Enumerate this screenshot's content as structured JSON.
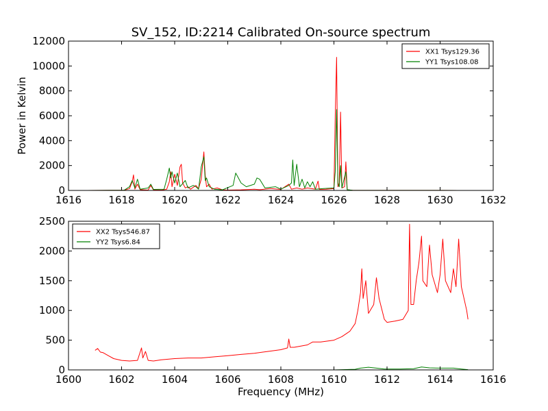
{
  "figure": {
    "title": "SV_152, ID:2214 Calibrated On-source spectrum",
    "xlabel": "Frequency (MHz)",
    "ylabel": "Power in Kelvin"
  },
  "colors": {
    "xx": "#ff0000",
    "yy": "#008000",
    "axes": "#000000"
  },
  "chart_data": [
    {
      "type": "line",
      "xlim": [
        1616,
        1632
      ],
      "ylim": [
        0,
        12000
      ],
      "xticks": [
        1616,
        1618,
        1620,
        1622,
        1624,
        1626,
        1628,
        1630,
        1632
      ],
      "yticks": [
        0,
        2000,
        4000,
        6000,
        8000,
        10000,
        12000
      ],
      "legend_position": "upper-right",
      "series": [
        {
          "name": "XX1 Tsys129.36",
          "color": "#ff0000",
          "points": [
            [
              1616.7,
              0
            ],
            [
              1618.1,
              20
            ],
            [
              1618.3,
              150
            ],
            [
              1618.4,
              700
            ],
            [
              1618.45,
              1250
            ],
            [
              1618.5,
              100
            ],
            [
              1618.6,
              500
            ],
            [
              1618.7,
              60
            ],
            [
              1619.0,
              30
            ],
            [
              1619.1,
              400
            ],
            [
              1619.2,
              40
            ],
            [
              1619.5,
              30
            ],
            [
              1619.7,
              100
            ],
            [
              1619.8,
              700
            ],
            [
              1619.85,
              1500
            ],
            [
              1619.9,
              300
            ],
            [
              1620.0,
              1300
            ],
            [
              1620.1,
              400
            ],
            [
              1620.2,
              1900
            ],
            [
              1620.25,
              2100
            ],
            [
              1620.3,
              600
            ],
            [
              1620.4,
              200
            ],
            [
              1620.5,
              300
            ],
            [
              1620.6,
              100
            ],
            [
              1620.8,
              400
            ],
            [
              1620.9,
              150
            ],
            [
              1621.0,
              900
            ],
            [
              1621.05,
              2000
            ],
            [
              1621.1,
              3100
            ],
            [
              1621.15,
              1200
            ],
            [
              1621.2,
              300
            ],
            [
              1621.3,
              500
            ],
            [
              1621.4,
              100
            ],
            [
              1621.6,
              200
            ],
            [
              1621.8,
              50
            ],
            [
              1622.0,
              30
            ],
            [
              1622.5,
              50
            ],
            [
              1623.0,
              100
            ],
            [
              1623.2,
              60
            ],
            [
              1623.6,
              150
            ],
            [
              1624.0,
              80
            ],
            [
              1624.3,
              500
            ],
            [
              1624.4,
              100
            ],
            [
              1624.6,
              200
            ],
            [
              1624.8,
              100
            ],
            [
              1625.0,
              200
            ],
            [
              1625.3,
              100
            ],
            [
              1625.4,
              750
            ],
            [
              1625.45,
              80
            ],
            [
              1625.7,
              100
            ],
            [
              1626.0,
              150
            ],
            [
              1626.05,
              6000
            ],
            [
              1626.1,
              10700
            ],
            [
              1626.15,
              300
            ],
            [
              1626.2,
              600
            ],
            [
              1626.25,
              6300
            ],
            [
              1626.3,
              200
            ],
            [
              1626.4,
              300
            ],
            [
              1626.45,
              2300
            ],
            [
              1626.5,
              50
            ],
            [
              1626.7,
              10
            ],
            [
              1628.0,
              5
            ],
            [
              1630.0,
              5
            ],
            [
              1630.7,
              0
            ]
          ]
        },
        {
          "name": "YY1 Tsys108.08",
          "color": "#008000",
          "points": [
            [
              1616.7,
              0
            ],
            [
              1618.1,
              20
            ],
            [
              1618.3,
              300
            ],
            [
              1618.4,
              800
            ],
            [
              1618.5,
              200
            ],
            [
              1618.6,
              900
            ],
            [
              1618.7,
              100
            ],
            [
              1619.0,
              200
            ],
            [
              1619.1,
              500
            ],
            [
              1619.2,
              80
            ],
            [
              1619.6,
              100
            ],
            [
              1619.7,
              900
            ],
            [
              1619.8,
              1800
            ],
            [
              1619.85,
              1000
            ],
            [
              1619.9,
              1500
            ],
            [
              1620.0,
              600
            ],
            [
              1620.1,
              1400
            ],
            [
              1620.2,
              300
            ],
            [
              1620.4,
              800
            ],
            [
              1620.5,
              200
            ],
            [
              1620.7,
              400
            ],
            [
              1620.8,
              300
            ],
            [
              1620.9,
              100
            ],
            [
              1621.0,
              1900
            ],
            [
              1621.1,
              2700
            ],
            [
              1621.15,
              800
            ],
            [
              1621.2,
              1000
            ],
            [
              1621.3,
              300
            ],
            [
              1621.5,
              100
            ],
            [
              1621.8,
              50
            ],
            [
              1622.2,
              400
            ],
            [
              1622.3,
              1400
            ],
            [
              1622.4,
              1000
            ],
            [
              1622.5,
              600
            ],
            [
              1622.7,
              300
            ],
            [
              1623.0,
              500
            ],
            [
              1623.1,
              1000
            ],
            [
              1623.2,
              900
            ],
            [
              1623.4,
              200
            ],
            [
              1623.8,
              300
            ],
            [
              1624.0,
              100
            ],
            [
              1624.3,
              400
            ],
            [
              1624.4,
              600
            ],
            [
              1624.45,
              2450
            ],
            [
              1624.5,
              400
            ],
            [
              1624.6,
              2100
            ],
            [
              1624.7,
              300
            ],
            [
              1624.8,
              900
            ],
            [
              1624.9,
              200
            ],
            [
              1625.0,
              700
            ],
            [
              1625.1,
              300
            ],
            [
              1625.2,
              700
            ],
            [
              1625.3,
              100
            ],
            [
              1625.6,
              150
            ],
            [
              1626.0,
              200
            ],
            [
              1626.05,
              1500
            ],
            [
              1626.1,
              6500
            ],
            [
              1626.15,
              500
            ],
            [
              1626.2,
              300
            ],
            [
              1626.25,
              2000
            ],
            [
              1626.3,
              200
            ],
            [
              1626.45,
              1500
            ],
            [
              1626.5,
              60
            ],
            [
              1626.7,
              10
            ],
            [
              1628.0,
              5
            ],
            [
              1630.0,
              5
            ],
            [
              1630.7,
              0
            ]
          ]
        }
      ]
    },
    {
      "type": "line",
      "xlim": [
        1600,
        1616
      ],
      "ylim": [
        0,
        2500
      ],
      "xticks": [
        1600,
        1602,
        1604,
        1606,
        1608,
        1610,
        1612,
        1614,
        1616
      ],
      "yticks": [
        0,
        500,
        1000,
        1500,
        2000,
        2500
      ],
      "legend_position": "upper-left",
      "series": [
        {
          "name": "XX2 Tsys546.87",
          "color": "#ff0000",
          "points": [
            [
              1601.0,
              330
            ],
            [
              1601.1,
              360
            ],
            [
              1601.2,
              300
            ],
            [
              1601.3,
              290
            ],
            [
              1601.5,
              240
            ],
            [
              1601.7,
              190
            ],
            [
              1602.0,
              160
            ],
            [
              1602.3,
              150
            ],
            [
              1602.6,
              160
            ],
            [
              1602.7,
              300
            ],
            [
              1602.75,
              370
            ],
            [
              1602.8,
              200
            ],
            [
              1602.9,
              310
            ],
            [
              1603.0,
              160
            ],
            [
              1603.2,
              150
            ],
            [
              1603.5,
              170
            ],
            [
              1604.0,
              190
            ],
            [
              1604.5,
              200
            ],
            [
              1605.0,
              200
            ],
            [
              1605.5,
              220
            ],
            [
              1606.0,
              240
            ],
            [
              1606.5,
              260
            ],
            [
              1607.0,
              280
            ],
            [
              1607.5,
              310
            ],
            [
              1608.0,
              340
            ],
            [
              1608.25,
              370
            ],
            [
              1608.3,
              520
            ],
            [
              1608.35,
              380
            ],
            [
              1608.5,
              380
            ],
            [
              1609.0,
              420
            ],
            [
              1609.2,
              470
            ],
            [
              1609.5,
              470
            ],
            [
              1610.0,
              500
            ],
            [
              1610.3,
              560
            ],
            [
              1610.6,
              650
            ],
            [
              1610.8,
              780
            ],
            [
              1610.9,
              1000
            ],
            [
              1611.0,
              1300
            ],
            [
              1611.05,
              1700
            ],
            [
              1611.1,
              1200
            ],
            [
              1611.2,
              1500
            ],
            [
              1611.3,
              950
            ],
            [
              1611.5,
              1100
            ],
            [
              1611.6,
              1550
            ],
            [
              1611.7,
              1200
            ],
            [
              1611.9,
              850
            ],
            [
              1612.0,
              800
            ],
            [
              1612.3,
              820
            ],
            [
              1612.6,
              850
            ],
            [
              1612.8,
              1000
            ],
            [
              1612.85,
              2450
            ],
            [
              1612.9,
              1100
            ],
            [
              1613.0,
              1100
            ],
            [
              1613.1,
              1500
            ],
            [
              1613.2,
              1800
            ],
            [
              1613.3,
              2250
            ],
            [
              1613.35,
              1500
            ],
            [
              1613.5,
              1400
            ],
            [
              1613.6,
              2100
            ],
            [
              1613.7,
              1600
            ],
            [
              1613.9,
              1300
            ],
            [
              1614.0,
              1600
            ],
            [
              1614.1,
              2200
            ],
            [
              1614.2,
              1500
            ],
            [
              1614.4,
              1300
            ],
            [
              1614.5,
              1700
            ],
            [
              1614.6,
              1400
            ],
            [
              1614.7,
              2200
            ],
            [
              1614.8,
              1400
            ],
            [
              1614.9,
              1200
            ],
            [
              1615.0,
              1000
            ],
            [
              1615.05,
              850
            ]
          ]
        },
        {
          "name": "YY2 Tsys6.84",
          "color": "#008000",
          "points": [
            [
              1601.0,
              0
            ],
            [
              1605.0,
              0
            ],
            [
              1610.0,
              0
            ],
            [
              1610.8,
              10
            ],
            [
              1611.0,
              30
            ],
            [
              1611.3,
              45
            ],
            [
              1611.6,
              30
            ],
            [
              1611.9,
              15
            ],
            [
              1612.5,
              15
            ],
            [
              1613.0,
              20
            ],
            [
              1613.3,
              50
            ],
            [
              1613.6,
              35
            ],
            [
              1614.0,
              30
            ],
            [
              1614.5,
              30
            ],
            [
              1614.8,
              15
            ],
            [
              1615.05,
              5
            ]
          ]
        }
      ]
    }
  ]
}
